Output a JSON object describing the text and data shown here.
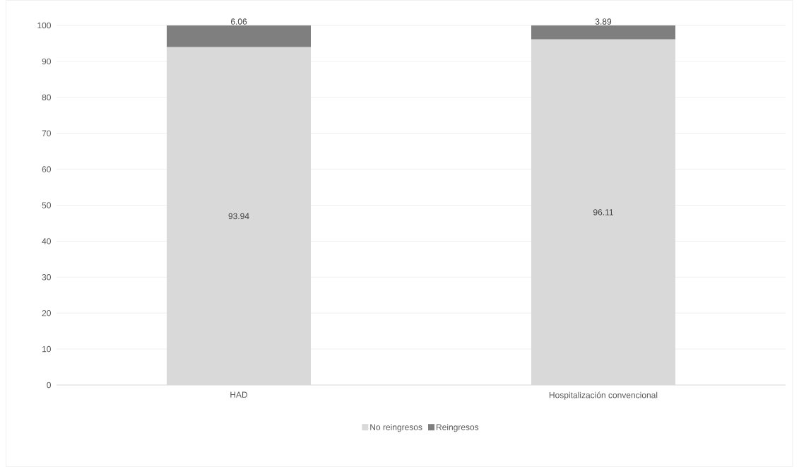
{
  "chart_data": {
    "type": "bar",
    "stacked": true,
    "categories": [
      "HAD",
      "Hospitalización convencional"
    ],
    "series": [
      {
        "name": "No reingresos",
        "color": "#d9d9d9",
        "values": [
          93.94,
          96.11
        ]
      },
      {
        "name": "Reingresos",
        "color": "#7f7f7f",
        "values": [
          6.06,
          3.89
        ]
      }
    ],
    "ylim": [
      0,
      100
    ],
    "yticks": [
      0,
      10,
      20,
      30,
      40,
      50,
      60,
      70,
      80,
      90,
      100
    ],
    "grid": "y",
    "legend": "bottom",
    "data_labels": true
  }
}
